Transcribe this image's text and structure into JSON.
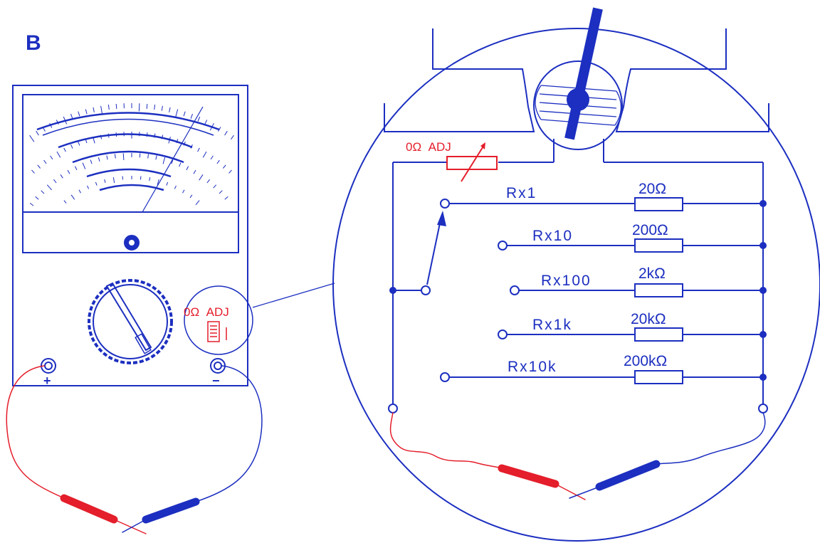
{
  "panel_label": "B",
  "meter": {
    "zero_adj_label": "0Ω  ADJ",
    "terminal_plus": "+",
    "terminal_minus": "−"
  },
  "circuit": {
    "zero_adj_label": "0Ω  ADJ",
    "ranges": [
      {
        "label": "Rx1",
        "resistor": "20Ω"
      },
      {
        "label": "Rx10",
        "resistor": "200Ω"
      },
      {
        "label": "Rx100",
        "resistor": "2kΩ"
      },
      {
        "label": "Rx1k",
        "resistor": "20kΩ"
      },
      {
        "label": "Rx10k",
        "resistor": "200kΩ"
      }
    ]
  },
  "colors": {
    "line": "#1c2fc0",
    "positive_lead": "#e41e2b",
    "negative_lead": "#1c2fc0"
  }
}
